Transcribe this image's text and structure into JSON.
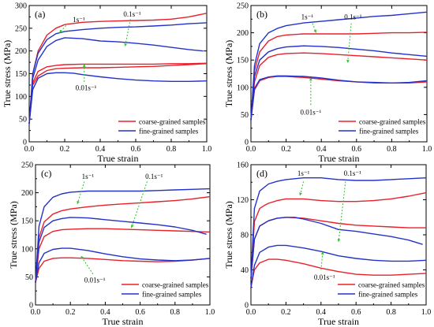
{
  "chart_data": [
    {
      "type": "line",
      "panel_label": "(a)",
      "xlabel": "True strain",
      "ylabel": "True stress (MPa)",
      "xlim": [
        0,
        1.0
      ],
      "ylim": [
        0,
        300
      ],
      "xticks": [
        0.0,
        0.2,
        0.4,
        0.6,
        0.8,
        1.0
      ],
      "yticks": [
        0,
        50,
        100,
        150,
        200,
        250,
        300
      ],
      "annotations": [
        "1s⁻¹",
        "0.1s⁻¹",
        "0.01s⁻¹"
      ],
      "legend": {
        "position": "bottom-right",
        "entries": [
          {
            "label": "coarse-grained samples",
            "color": "#e8202a"
          },
          {
            "label": "fine-grained samples",
            "color": "#2332c8"
          }
        ]
      },
      "series": [
        {
          "group": "coarse-grained samples",
          "color": "#e8202a",
          "x": [
            0,
            0.02,
            0.05,
            0.1,
            0.15,
            0.2,
            0.3,
            0.4,
            0.5,
            0.6,
            0.7,
            0.8,
            0.9,
            1.0
          ],
          "y": [
            40,
            150,
            200,
            235,
            250,
            258,
            263,
            265,
            266,
            267,
            268,
            270,
            275,
            283
          ]
        },
        {
          "group": "coarse-grained samples",
          "color": "#e8202a",
          "x": [
            0,
            0.02,
            0.05,
            0.1,
            0.15,
            0.2,
            0.3,
            0.4,
            0.5,
            0.6,
            0.7,
            0.8,
            0.9,
            1.0
          ],
          "y": [
            40,
            130,
            155,
            165,
            168,
            170,
            171,
            171,
            171,
            171,
            171,
            172,
            172,
            173
          ]
        },
        {
          "group": "coarse-grained samples",
          "color": "#e8202a",
          "x": [
            0,
            0.02,
            0.05,
            0.1,
            0.15,
            0.2,
            0.3,
            0.4,
            0.5,
            0.6,
            0.7,
            0.8,
            0.9,
            1.0
          ],
          "y": [
            40,
            125,
            145,
            157,
            161,
            162,
            163,
            163,
            164,
            165,
            166,
            168,
            170,
            172
          ]
        },
        {
          "group": "fine-grained samples",
          "color": "#2332c8",
          "x": [
            0,
            0.02,
            0.05,
            0.1,
            0.15,
            0.2,
            0.3,
            0.4,
            0.5,
            0.6,
            0.7,
            0.8,
            0.9,
            1.0
          ],
          "y": [
            40,
            150,
            195,
            225,
            238,
            243,
            247,
            250,
            252,
            253,
            255,
            257,
            260,
            262
          ]
        },
        {
          "group": "fine-grained samples",
          "color": "#2332c8",
          "x": [
            0,
            0.02,
            0.05,
            0.1,
            0.15,
            0.2,
            0.3,
            0.4,
            0.5,
            0.6,
            0.7,
            0.8,
            0.9,
            0.98
          ],
          "y": [
            40,
            140,
            180,
            210,
            223,
            229,
            227,
            222,
            220,
            217,
            213,
            208,
            203,
            200
          ]
        },
        {
          "group": "fine-grained samples",
          "color": "#2332c8",
          "x": [
            0,
            0.02,
            0.05,
            0.1,
            0.15,
            0.2,
            0.25,
            0.3,
            0.4,
            0.5,
            0.6,
            0.7,
            0.8,
            0.9,
            1.0
          ],
          "y": [
            40,
            115,
            140,
            150,
            152,
            152,
            151,
            148,
            143,
            139,
            136,
            134,
            133,
            133,
            134
          ]
        }
      ]
    },
    {
      "type": "line",
      "panel_label": "(b)",
      "xlabel": "True strain",
      "ylabel": "True stress (MPa)",
      "xlim": [
        0,
        1.0
      ],
      "ylim": [
        0,
        250
      ],
      "xticks": [
        0.0,
        0.2,
        0.4,
        0.6,
        0.8,
        1.0
      ],
      "yticks": [
        0,
        50,
        100,
        150,
        200,
        250
      ],
      "annotations": [
        "1s⁻¹",
        "0.1s⁻¹",
        "0.01s⁻¹"
      ],
      "legend": {
        "position": "bottom-right",
        "entries": [
          {
            "label": "coarse-grained samples",
            "color": "#e8202a"
          },
          {
            "label": "fine-grained samples",
            "color": "#2332c8"
          }
        ]
      },
      "series": [
        {
          "group": "coarse-grained samples",
          "color": "#e8202a",
          "x": [
            0,
            0.02,
            0.05,
            0.1,
            0.15,
            0.2,
            0.3,
            0.4,
            0.5,
            0.6,
            0.7,
            0.8,
            0.9,
            1.0
          ],
          "y": [
            40,
            130,
            165,
            185,
            193,
            196,
            198,
            198,
            198,
            198,
            199,
            200,
            200,
            201
          ]
        },
        {
          "group": "coarse-grained samples",
          "color": "#e8202a",
          "x": [
            0,
            0.02,
            0.05,
            0.1,
            0.15,
            0.2,
            0.3,
            0.4,
            0.5,
            0.6,
            0.7,
            0.8,
            0.9,
            1.0
          ],
          "y": [
            40,
            110,
            140,
            155,
            160,
            162,
            163,
            162,
            160,
            158,
            156,
            154,
            152,
            150
          ]
        },
        {
          "group": "coarse-grained samples",
          "color": "#e8202a",
          "x": [
            0,
            0.02,
            0.05,
            0.1,
            0.15,
            0.2,
            0.3,
            0.4,
            0.5,
            0.6,
            0.7,
            0.8,
            0.9,
            1.0
          ],
          "y": [
            40,
            95,
            112,
            118,
            120,
            120,
            118,
            115,
            112,
            110,
            108,
            108,
            108,
            110
          ]
        },
        {
          "group": "fine-grained samples",
          "color": "#2332c8",
          "x": [
            0,
            0.02,
            0.05,
            0.1,
            0.15,
            0.2,
            0.3,
            0.4,
            0.5,
            0.6,
            0.7,
            0.8,
            0.9,
            1.0
          ],
          "y": [
            40,
            140,
            180,
            200,
            208,
            213,
            218,
            221,
            224,
            227,
            230,
            232,
            235,
            238
          ]
        },
        {
          "group": "fine-grained samples",
          "color": "#2332c8",
          "x": [
            0,
            0.02,
            0.05,
            0.1,
            0.15,
            0.2,
            0.3,
            0.4,
            0.5,
            0.6,
            0.7,
            0.8,
            0.9,
            1.0
          ],
          "y": [
            40,
            120,
            150,
            165,
            171,
            174,
            176,
            175,
            173,
            170,
            167,
            163,
            160,
            157
          ]
        },
        {
          "group": "fine-grained samples",
          "color": "#2332c8",
          "x": [
            0,
            0.02,
            0.05,
            0.1,
            0.15,
            0.2,
            0.3,
            0.4,
            0.5,
            0.6,
            0.7,
            0.8,
            0.9,
            1.0
          ],
          "y": [
            40,
            98,
            114,
            119,
            121,
            121,
            120,
            117,
            113,
            110,
            109,
            108,
            109,
            112
          ]
        }
      ]
    },
    {
      "type": "line",
      "panel_label": "(c)",
      "xlabel": "True strain",
      "ylabel": "True stress (MPa)",
      "xlim": [
        0,
        1.0
      ],
      "ylim": [
        0,
        250
      ],
      "xticks": [
        0.0,
        0.2,
        0.4,
        0.6,
        0.8,
        1.0
      ],
      "yticks": [
        0,
        50,
        100,
        150,
        200,
        250
      ],
      "annotations": [
        "1s⁻¹",
        "0.1s⁻¹",
        "0.01s⁻¹"
      ],
      "legend": {
        "position": "bottom-right",
        "entries": [
          {
            "label": "coarse-grained samples",
            "color": "#e8202a"
          },
          {
            "label": "fine-grained samples",
            "color": "#2332c8"
          }
        ]
      },
      "series": [
        {
          "group": "coarse-grained samples",
          "color": "#e8202a",
          "x": [
            0,
            0.02,
            0.05,
            0.1,
            0.15,
            0.2,
            0.3,
            0.4,
            0.5,
            0.6,
            0.7,
            0.8,
            0.9,
            1.0
          ],
          "y": [
            40,
            120,
            148,
            162,
            168,
            171,
            175,
            178,
            180,
            182,
            184,
            186,
            189,
            193
          ]
        },
        {
          "group": "coarse-grained samples",
          "color": "#e8202a",
          "x": [
            0,
            0.02,
            0.05,
            0.1,
            0.15,
            0.2,
            0.3,
            0.4,
            0.5,
            0.6,
            0.7,
            0.8,
            0.9,
            1.0
          ],
          "y": [
            40,
            100,
            122,
            131,
            134,
            135,
            136,
            136,
            135,
            134,
            133,
            132,
            131,
            130
          ]
        },
        {
          "group": "coarse-grained samples",
          "color": "#e8202a",
          "x": [
            0,
            0.02,
            0.05,
            0.1,
            0.15,
            0.2,
            0.3,
            0.4,
            0.5,
            0.6,
            0.7,
            0.8,
            0.9,
            1.0
          ],
          "y": [
            40,
            65,
            78,
            83,
            84,
            84,
            83,
            81,
            79,
            78,
            77,
            78,
            80,
            83
          ]
        },
        {
          "group": "fine-grained samples",
          "color": "#2332c8",
          "x": [
            0,
            0.02,
            0.05,
            0.1,
            0.15,
            0.2,
            0.3,
            0.4,
            0.5,
            0.6,
            0.7,
            0.8,
            0.9,
            1.0
          ],
          "y": [
            40,
            140,
            175,
            192,
            198,
            201,
            203,
            203,
            203,
            203,
            204,
            205,
            206,
            207
          ]
        },
        {
          "group": "fine-grained samples",
          "color": "#2332c8",
          "x": [
            0,
            0.02,
            0.05,
            0.1,
            0.15,
            0.2,
            0.3,
            0.4,
            0.5,
            0.6,
            0.7,
            0.8,
            0.9,
            0.98
          ],
          "y": [
            40,
            112,
            138,
            150,
            154,
            156,
            155,
            152,
            149,
            146,
            143,
            139,
            133,
            126
          ]
        },
        {
          "group": "fine-grained samples",
          "color": "#2332c8",
          "x": [
            0,
            0.02,
            0.05,
            0.1,
            0.15,
            0.2,
            0.3,
            0.4,
            0.5,
            0.6,
            0.7,
            0.8,
            0.9,
            1.0
          ],
          "y": [
            40,
            75,
            92,
            99,
            101,
            101,
            97,
            91,
            86,
            82,
            80,
            79,
            80,
            83
          ]
        }
      ]
    },
    {
      "type": "line",
      "panel_label": "(d)",
      "xlabel": "True strain",
      "ylabel": "True stress (MPa)",
      "xlim": [
        0,
        1.0
      ],
      "ylim": [
        0,
        160
      ],
      "xticks": [
        0.0,
        0.2,
        0.4,
        0.6,
        0.8,
        1.0
      ],
      "yticks": [
        0,
        40,
        80,
        120,
        160
      ],
      "annotations": [
        "1s⁻¹",
        "0.1s⁻¹",
        "0.01s⁻¹"
      ],
      "legend": {
        "position": "bottom-right",
        "entries": [
          {
            "label": "coarse-grained samples",
            "color": "#e8202a"
          },
          {
            "label": "fine-grained samples",
            "color": "#2332c8"
          }
        ]
      },
      "series": [
        {
          "group": "coarse-grained samples",
          "color": "#e8202a",
          "x": [
            0,
            0.02,
            0.05,
            0.08,
            0.1,
            0.15,
            0.2,
            0.3,
            0.4,
            0.5,
            0.6,
            0.7,
            0.8,
            0.9,
            1.0
          ],
          "y": [
            30,
            95,
            110,
            114,
            116,
            119,
            121,
            121,
            119,
            118,
            118,
            119,
            121,
            124,
            128
          ]
        },
        {
          "group": "coarse-grained samples",
          "color": "#e8202a",
          "x": [
            0,
            0.02,
            0.05,
            0.1,
            0.15,
            0.2,
            0.3,
            0.4,
            0.5,
            0.6,
            0.7,
            0.8,
            0.9,
            1.0
          ],
          "y": [
            30,
            75,
            90,
            96,
            99,
            100,
            99,
            96,
            93,
            91,
            90,
            89,
            88,
            88
          ]
        },
        {
          "group": "coarse-grained samples",
          "color": "#e8202a",
          "x": [
            0,
            0.02,
            0.05,
            0.1,
            0.15,
            0.2,
            0.3,
            0.4,
            0.5,
            0.6,
            0.7,
            0.8,
            0.9,
            1.0
          ],
          "y": [
            20,
            40,
            48,
            52,
            52,
            51,
            47,
            42,
            38,
            35,
            34,
            34,
            35,
            36
          ]
        },
        {
          "group": "fine-grained samples",
          "color": "#2332c8",
          "x": [
            0,
            0.02,
            0.05,
            0.1,
            0.15,
            0.2,
            0.3,
            0.4,
            0.5,
            0.6,
            0.7,
            0.8,
            0.9,
            1.0
          ],
          "y": [
            30,
            110,
            130,
            138,
            141,
            143,
            145,
            145,
            143,
            142,
            142,
            143,
            144,
            145
          ]
        },
        {
          "group": "fine-grained samples",
          "color": "#2332c8",
          "x": [
            0,
            0.02,
            0.05,
            0.1,
            0.15,
            0.2,
            0.25,
            0.3,
            0.4,
            0.5,
            0.6,
            0.7,
            0.8,
            0.9,
            0.98
          ],
          "y": [
            30,
            75,
            90,
            96,
            99,
            100,
            100,
            98,
            93,
            86,
            84,
            81,
            78,
            74,
            69
          ]
        },
        {
          "group": "fine-grained samples",
          "color": "#2332c8",
          "x": [
            0,
            0.02,
            0.05,
            0.1,
            0.15,
            0.2,
            0.3,
            0.4,
            0.5,
            0.6,
            0.7,
            0.8,
            0.9,
            1.0
          ],
          "y": [
            20,
            45,
            60,
            66,
            68,
            68,
            65,
            61,
            56,
            53,
            51,
            50,
            50,
            51
          ]
        }
      ]
    }
  ]
}
